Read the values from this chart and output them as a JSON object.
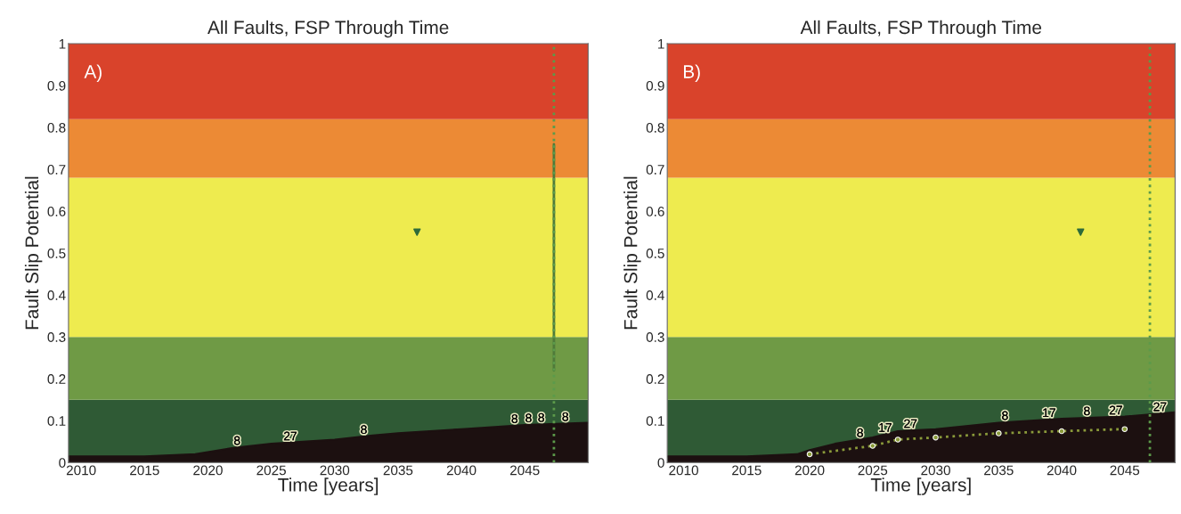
{
  "chart_data": [
    {
      "type": "line",
      "title": "All Faults, FSP Through Time",
      "xlabel": "Time [years]",
      "ylabel": "Fault Slip Potential",
      "xlim": [
        2009,
        2050
      ],
      "ylim": [
        0,
        1
      ],
      "xticks": [
        2010,
        2015,
        2020,
        2025,
        2030,
        2035,
        2040,
        2045
      ],
      "yticks": [
        0,
        0.1,
        0.2,
        0.3,
        0.4,
        0.5,
        0.6,
        0.7,
        0.8,
        0.9,
        1
      ],
      "grid": false,
      "legend": false,
      "bands": [
        {
          "axis": "y",
          "from": 0,
          "to": 0.15,
          "color": "#2f5a35"
        },
        {
          "axis": "y",
          "from": 0.15,
          "to": 0.3,
          "color": "#6f9a45"
        },
        {
          "axis": "y",
          "from": 0.3,
          "to": 0.68,
          "color": "#eeeb4f"
        },
        {
          "axis": "y",
          "from": 0.68,
          "to": 0.82,
          "color": "#ec8a35"
        },
        {
          "axis": "y",
          "from": 0.82,
          "to": 1,
          "color": "#d9432b"
        }
      ],
      "ref_lines": [
        {
          "axis": "x",
          "value": 2047.3,
          "color": "#5c9a4a",
          "line_style": "dotted"
        }
      ],
      "series": [
        {
          "type": "area",
          "color": "#1c1010",
          "x": [
            2009,
            2015,
            2019,
            2022,
            2025,
            2030,
            2033,
            2035,
            2040,
            2045,
            2050
          ],
          "values": [
            0.015,
            0.015,
            0.02,
            0.035,
            0.045,
            0.055,
            0.065,
            0.07,
            0.08,
            0.09,
            0.095
          ]
        },
        {
          "color": "#4f7a3a",
          "x": [
            2047.3,
            2047.3
          ],
          "values": [
            0.22,
            0.76
          ]
        },
        {
          "type": "scatter",
          "color": "#2e6b3a",
          "marker": "triangle",
          "x": [
            2036.5
          ],
          "values": [
            0.55
          ]
        }
      ],
      "annotations": [
        "A)",
        {
          "text": "8",
          "x": 2022.3,
          "y": 0.0365
        },
        {
          "text": "27",
          "x": 2026.5,
          "y": 0.047
        },
        {
          "text": "8",
          "x": 2032.3,
          "y": 0.0627
        },
        {
          "text": "8",
          "x": 2044.2,
          "y": 0.0884
        },
        {
          "text": "8",
          "x": 2045.3,
          "y": 0.0903
        },
        {
          "text": "8",
          "x": 2046.3,
          "y": 0.0913
        },
        {
          "text": "8",
          "x": 2048.2,
          "y": 0.0932
        }
      ]
    },
    {
      "type": "line",
      "title": "All Faults, FSP Through Time",
      "xlabel": "Time [years]",
      "ylabel": "Fault Slip Potential",
      "xlim": [
        2008.7,
        2049
      ],
      "ylim": [
        0,
        1
      ],
      "xticks": [
        2010,
        2015,
        2020,
        2025,
        2030,
        2035,
        2040,
        2045
      ],
      "yticks": [
        0,
        0.1,
        0.2,
        0.3,
        0.4,
        0.5,
        0.6,
        0.7,
        0.8,
        0.9,
        1
      ],
      "grid": false,
      "legend": false,
      "bands": [
        {
          "axis": "y",
          "from": 0,
          "to": 0.15,
          "color": "#2f5a35"
        },
        {
          "axis": "y",
          "from": 0.15,
          "to": 0.3,
          "color": "#6f9a45"
        },
        {
          "axis": "y",
          "from": 0.3,
          "to": 0.68,
          "color": "#eeeb4f"
        },
        {
          "axis": "y",
          "from": 0.68,
          "to": 0.82,
          "color": "#ec8a35"
        },
        {
          "axis": "y",
          "from": 0.82,
          "to": 1,
          "color": "#d9432b"
        }
      ],
      "ref_lines": [
        {
          "axis": "x",
          "value": 2047,
          "color": "#5c9a4a",
          "line_style": "dotted"
        }
      ],
      "series": [
        {
          "type": "area",
          "color": "#1c1010",
          "x": [
            2008.7,
            2015,
            2019,
            2020,
            2022,
            2025,
            2027,
            2030,
            2035,
            2040,
            2045,
            2049
          ],
          "values": [
            0.015,
            0.015,
            0.02,
            0.03,
            0.045,
            0.06,
            0.075,
            0.08,
            0.095,
            0.105,
            0.11,
            0.12
          ]
        },
        {
          "color": "#8a9a3a",
          "line_style": "dotted",
          "marker": "circle",
          "x": [
            2020,
            2025,
            2027,
            2030,
            2035,
            2040,
            2045
          ],
          "values": [
            0.02,
            0.04,
            0.055,
            0.06,
            0.07,
            0.075,
            0.08
          ]
        },
        {
          "type": "scatter",
          "color": "#2e6b3a",
          "marker": "triangle",
          "x": [
            2041.5
          ],
          "values": [
            0.55
          ]
        }
      ],
      "annotations": [
        "B)",
        {
          "text": "8",
          "x": 2024,
          "y": 0.055
        },
        {
          "text": "17",
          "x": 2026,
          "y": 0.0675
        },
        {
          "text": "27",
          "x": 2028,
          "y": 0.0767
        },
        {
          "text": "8",
          "x": 2035.5,
          "y": 0.096
        },
        {
          "text": "17",
          "x": 2039,
          "y": 0.103
        },
        {
          "text": "8",
          "x": 2042,
          "y": 0.107
        },
        {
          "text": "27",
          "x": 2044.3,
          "y": 0.109
        },
        {
          "text": "27",
          "x": 2047.8,
          "y": 0.117
        }
      ]
    }
  ]
}
